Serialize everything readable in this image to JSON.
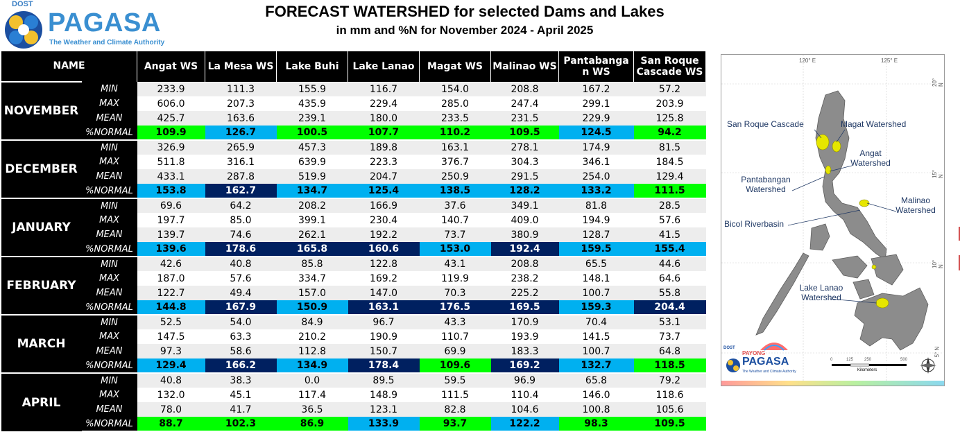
{
  "logo": {
    "agency_top": "DOST",
    "name": "PAGASA",
    "tagline": "The Weather and Climate Authority"
  },
  "title": "FORECAST WATERSHED for selected Dams and Lakes",
  "subtitle": "in mm and %N for November 2024 - April 2025",
  "table": {
    "name_header": "NAME",
    "columns": [
      "Angat WS",
      "La Mesa WS",
      "Lake Buhi",
      "Lake Lanao",
      "Magat WS",
      "Malinao WS",
      "Pantabanga n WS",
      "San Roque Cascade WS"
    ],
    "stat_labels": [
      "MIN",
      "MAX",
      "MEAN",
      "%NORMAL"
    ],
    "norm_color_scale": {
      "green": "#00ff00",
      "light_blue": "#00b0f0",
      "navy": "#002060"
    },
    "months": [
      {
        "name": "NOVEMBER",
        "min": [
          "233.9",
          "111.3",
          "155.9",
          "116.7",
          "154.0",
          "208.8",
          "167.2",
          "57.2"
        ],
        "max": [
          "606.0",
          "207.3",
          "435.9",
          "229.4",
          "285.0",
          "247.4",
          "299.1",
          "203.9"
        ],
        "mean": [
          "425.7",
          "163.6",
          "239.1",
          "180.0",
          "233.5",
          "231.5",
          "229.9",
          "125.8"
        ],
        "normal": [
          "109.9",
          "126.7",
          "100.5",
          "107.7",
          "110.2",
          "109.5",
          "124.5",
          "94.2"
        ],
        "normal_colors": [
          "green",
          "light_blue",
          "green",
          "green",
          "green",
          "green",
          "light_blue",
          "green"
        ]
      },
      {
        "name": "DECEMBER",
        "min": [
          "326.9",
          "265.9",
          "457.3",
          "189.8",
          "163.1",
          "278.1",
          "174.9",
          "81.5"
        ],
        "max": [
          "511.8",
          "316.1",
          "639.9",
          "223.3",
          "376.7",
          "304.3",
          "346.1",
          "184.5"
        ],
        "mean": [
          "433.1",
          "287.8",
          "519.9",
          "204.7",
          "250.9",
          "291.5",
          "254.0",
          "129.4"
        ],
        "normal": [
          "153.8",
          "162.7",
          "134.7",
          "125.4",
          "138.5",
          "128.2",
          "133.2",
          "111.5"
        ],
        "normal_colors": [
          "light_blue",
          "navy",
          "light_blue",
          "light_blue",
          "light_blue",
          "light_blue",
          "light_blue",
          "green"
        ]
      },
      {
        "name": "JANUARY",
        "min": [
          "69.6",
          "64.2",
          "208.2",
          "166.9",
          "37.6",
          "349.1",
          "81.8",
          "28.5"
        ],
        "max": [
          "197.7",
          "85.0",
          "399.1",
          "230.4",
          "140.7",
          "409.0",
          "194.9",
          "57.6"
        ],
        "mean": [
          "139.7",
          "74.6",
          "262.1",
          "192.2",
          "73.7",
          "380.9",
          "128.7",
          "41.5"
        ],
        "normal": [
          "139.6",
          "178.6",
          "165.8",
          "160.6",
          "153.0",
          "192.4",
          "159.5",
          "155.4"
        ],
        "normal_colors": [
          "light_blue",
          "navy",
          "navy",
          "navy",
          "light_blue",
          "navy",
          "light_blue",
          "light_blue"
        ]
      },
      {
        "name": "FEBRUARY",
        "min": [
          "42.6",
          "40.8",
          "85.8",
          "122.8",
          "43.1",
          "208.8",
          "65.5",
          "44.6"
        ],
        "max": [
          "187.0",
          "57.6",
          "334.7",
          "169.2",
          "119.9",
          "238.2",
          "148.1",
          "64.6"
        ],
        "mean": [
          "122.7",
          "49.4",
          "157.0",
          "147.0",
          "70.3",
          "225.2",
          "100.7",
          "55.8"
        ],
        "normal": [
          "144.8",
          "167.9",
          "150.9",
          "163.1",
          "176.5",
          "169.5",
          "159.3",
          "204.4"
        ],
        "normal_colors": [
          "light_blue",
          "navy",
          "light_blue",
          "navy",
          "navy",
          "navy",
          "light_blue",
          "navy"
        ]
      },
      {
        "name": "MARCH",
        "min": [
          "52.5",
          "54.0",
          "84.9",
          "96.7",
          "43.3",
          "170.9",
          "70.4",
          "53.1"
        ],
        "max": [
          "147.5",
          "63.3",
          "210.2",
          "190.9",
          "110.7",
          "193.9",
          "141.5",
          "73.7"
        ],
        "mean": [
          "97.3",
          "58.6",
          "112.8",
          "150.7",
          "69.9",
          "183.3",
          "100.7",
          "64.8"
        ],
        "normal": [
          "129.4",
          "166.2",
          "134.9",
          "178.4",
          "109.6",
          "169.2",
          "132.7",
          "118.5"
        ],
        "normal_colors": [
          "light_blue",
          "navy",
          "light_blue",
          "navy",
          "green",
          "navy",
          "light_blue",
          "green"
        ]
      },
      {
        "name": "APRIL",
        "min": [
          "40.8",
          "38.3",
          "0.0",
          "89.5",
          "59.5",
          "96.9",
          "65.8",
          "79.2"
        ],
        "max": [
          "132.0",
          "45.1",
          "117.4",
          "148.9",
          "111.5",
          "110.4",
          "146.0",
          "118.6"
        ],
        "mean": [
          "78.0",
          "41.7",
          "36.5",
          "123.1",
          "82.8",
          "104.6",
          "100.8",
          "105.6"
        ],
        "normal": [
          "88.7",
          "102.3",
          "86.9",
          "133.9",
          "93.7",
          "122.2",
          "98.3",
          "109.5"
        ],
        "normal_colors": [
          "green",
          "green",
          "green",
          "light_blue",
          "green",
          "light_blue",
          "green",
          "green"
        ]
      }
    ]
  },
  "map": {
    "lon_labels": [
      "120° E",
      "125° E"
    ],
    "lat_labels": [
      "20° N",
      "15° N",
      "10° N",
      "5° N"
    ],
    "labels": {
      "san_roque": "San Roque Cascade",
      "magat": "Magat Watershed",
      "angat": "Angat Watershed",
      "pantabangan": "Pantabangan Watershed",
      "malinao": "Malinao Watershed",
      "bicol": "Bicol Riverbasin",
      "lanao": "Lake Lanao Watershed"
    },
    "scale_ticks": [
      "0",
      "125",
      "250",
      "500"
    ],
    "scale_unit": "Kilometers",
    "logo_dost": "DOST",
    "logo_payong": "PAYONG",
    "logo_name": "PAGASA",
    "logo_tagline": "The Weather and Climate Authority"
  }
}
